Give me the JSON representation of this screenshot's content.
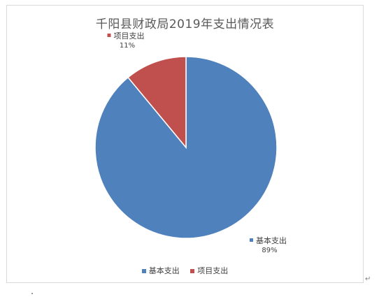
{
  "chart_data": {
    "type": "pie",
    "title": "千阳县财政局2019年支出情况表",
    "categories": [
      "基本支出",
      "项目支出"
    ],
    "values": [
      89,
      11
    ],
    "units": "%",
    "colors": [
      "#4f81bd",
      "#c0504d"
    ],
    "data_labels": [
      {
        "category": "基本支出",
        "percent": "89%"
      },
      {
        "category": "项目支出",
        "percent": "11%"
      }
    ],
    "legend_position": "bottom",
    "grid": false
  },
  "legend": {
    "items": [
      {
        "label": "基本支出",
        "color": "#4f81bd"
      },
      {
        "label": "项目支出",
        "color": "#c0504d"
      }
    ]
  },
  "page": {
    "paragraph_mark": "↵"
  }
}
